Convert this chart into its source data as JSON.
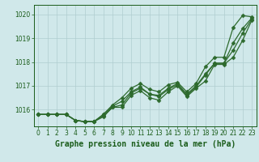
{
  "title": "Graphe pression niveau de la mer (hPa)",
  "x_values": [
    0,
    1,
    2,
    3,
    4,
    5,
    6,
    7,
    8,
    9,
    10,
    11,
    12,
    13,
    14,
    15,
    16,
    17,
    18,
    19,
    20,
    21,
    22,
    23
  ],
  "series": [
    [
      1015.8,
      1015.8,
      1015.8,
      1015.8,
      1015.55,
      1015.5,
      1015.5,
      1015.8,
      1016.2,
      1016.5,
      1016.9,
      1017.1,
      1016.85,
      1016.75,
      1017.05,
      1017.15,
      1016.75,
      1017.1,
      1017.8,
      1018.2,
      1018.2,
      1019.45,
      1019.95,
      1019.9
    ],
    [
      1015.8,
      1015.8,
      1015.8,
      1015.8,
      1015.55,
      1015.5,
      1015.5,
      1015.8,
      1016.15,
      1016.35,
      1016.75,
      1016.95,
      1016.65,
      1016.6,
      1016.9,
      1017.1,
      1016.65,
      1017.0,
      1017.5,
      1017.95,
      1017.95,
      1018.8,
      1019.4,
      1019.85
    ],
    [
      1015.8,
      1015.8,
      1015.8,
      1015.8,
      1015.55,
      1015.5,
      1015.5,
      1015.75,
      1016.1,
      1016.2,
      1016.7,
      1016.9,
      1016.65,
      1016.55,
      1016.85,
      1017.05,
      1016.6,
      1016.95,
      1017.45,
      1017.95,
      1017.95,
      1018.5,
      1019.2,
      1019.8
    ],
    [
      1015.8,
      1015.8,
      1015.8,
      1015.8,
      1015.55,
      1015.5,
      1015.5,
      1015.7,
      1016.1,
      1016.1,
      1016.6,
      1016.8,
      1016.5,
      1016.4,
      1016.75,
      1017.0,
      1016.55,
      1016.9,
      1017.2,
      1017.9,
      1017.9,
      1018.2,
      1018.9,
      1019.75
    ]
  ],
  "line_color": "#2d6a2d",
  "marker_color": "#2d6a2d",
  "bg_color": "#d0e8ea",
  "grid_color": "#b0cdd0",
  "text_color": "#1a5c1a",
  "ylim": [
    1015.3,
    1020.4
  ],
  "yticks": [
    1016,
    1017,
    1018,
    1019,
    1020
  ],
  "xlim": [
    -0.5,
    23.5
  ],
  "xticks": [
    0,
    1,
    2,
    3,
    4,
    5,
    6,
    7,
    8,
    9,
    10,
    11,
    12,
    13,
    14,
    15,
    16,
    17,
    18,
    19,
    20,
    21,
    22,
    23
  ],
  "title_fontsize": 7.0,
  "tick_fontsize": 5.5,
  "marker_size": 2.5,
  "line_width": 0.9
}
